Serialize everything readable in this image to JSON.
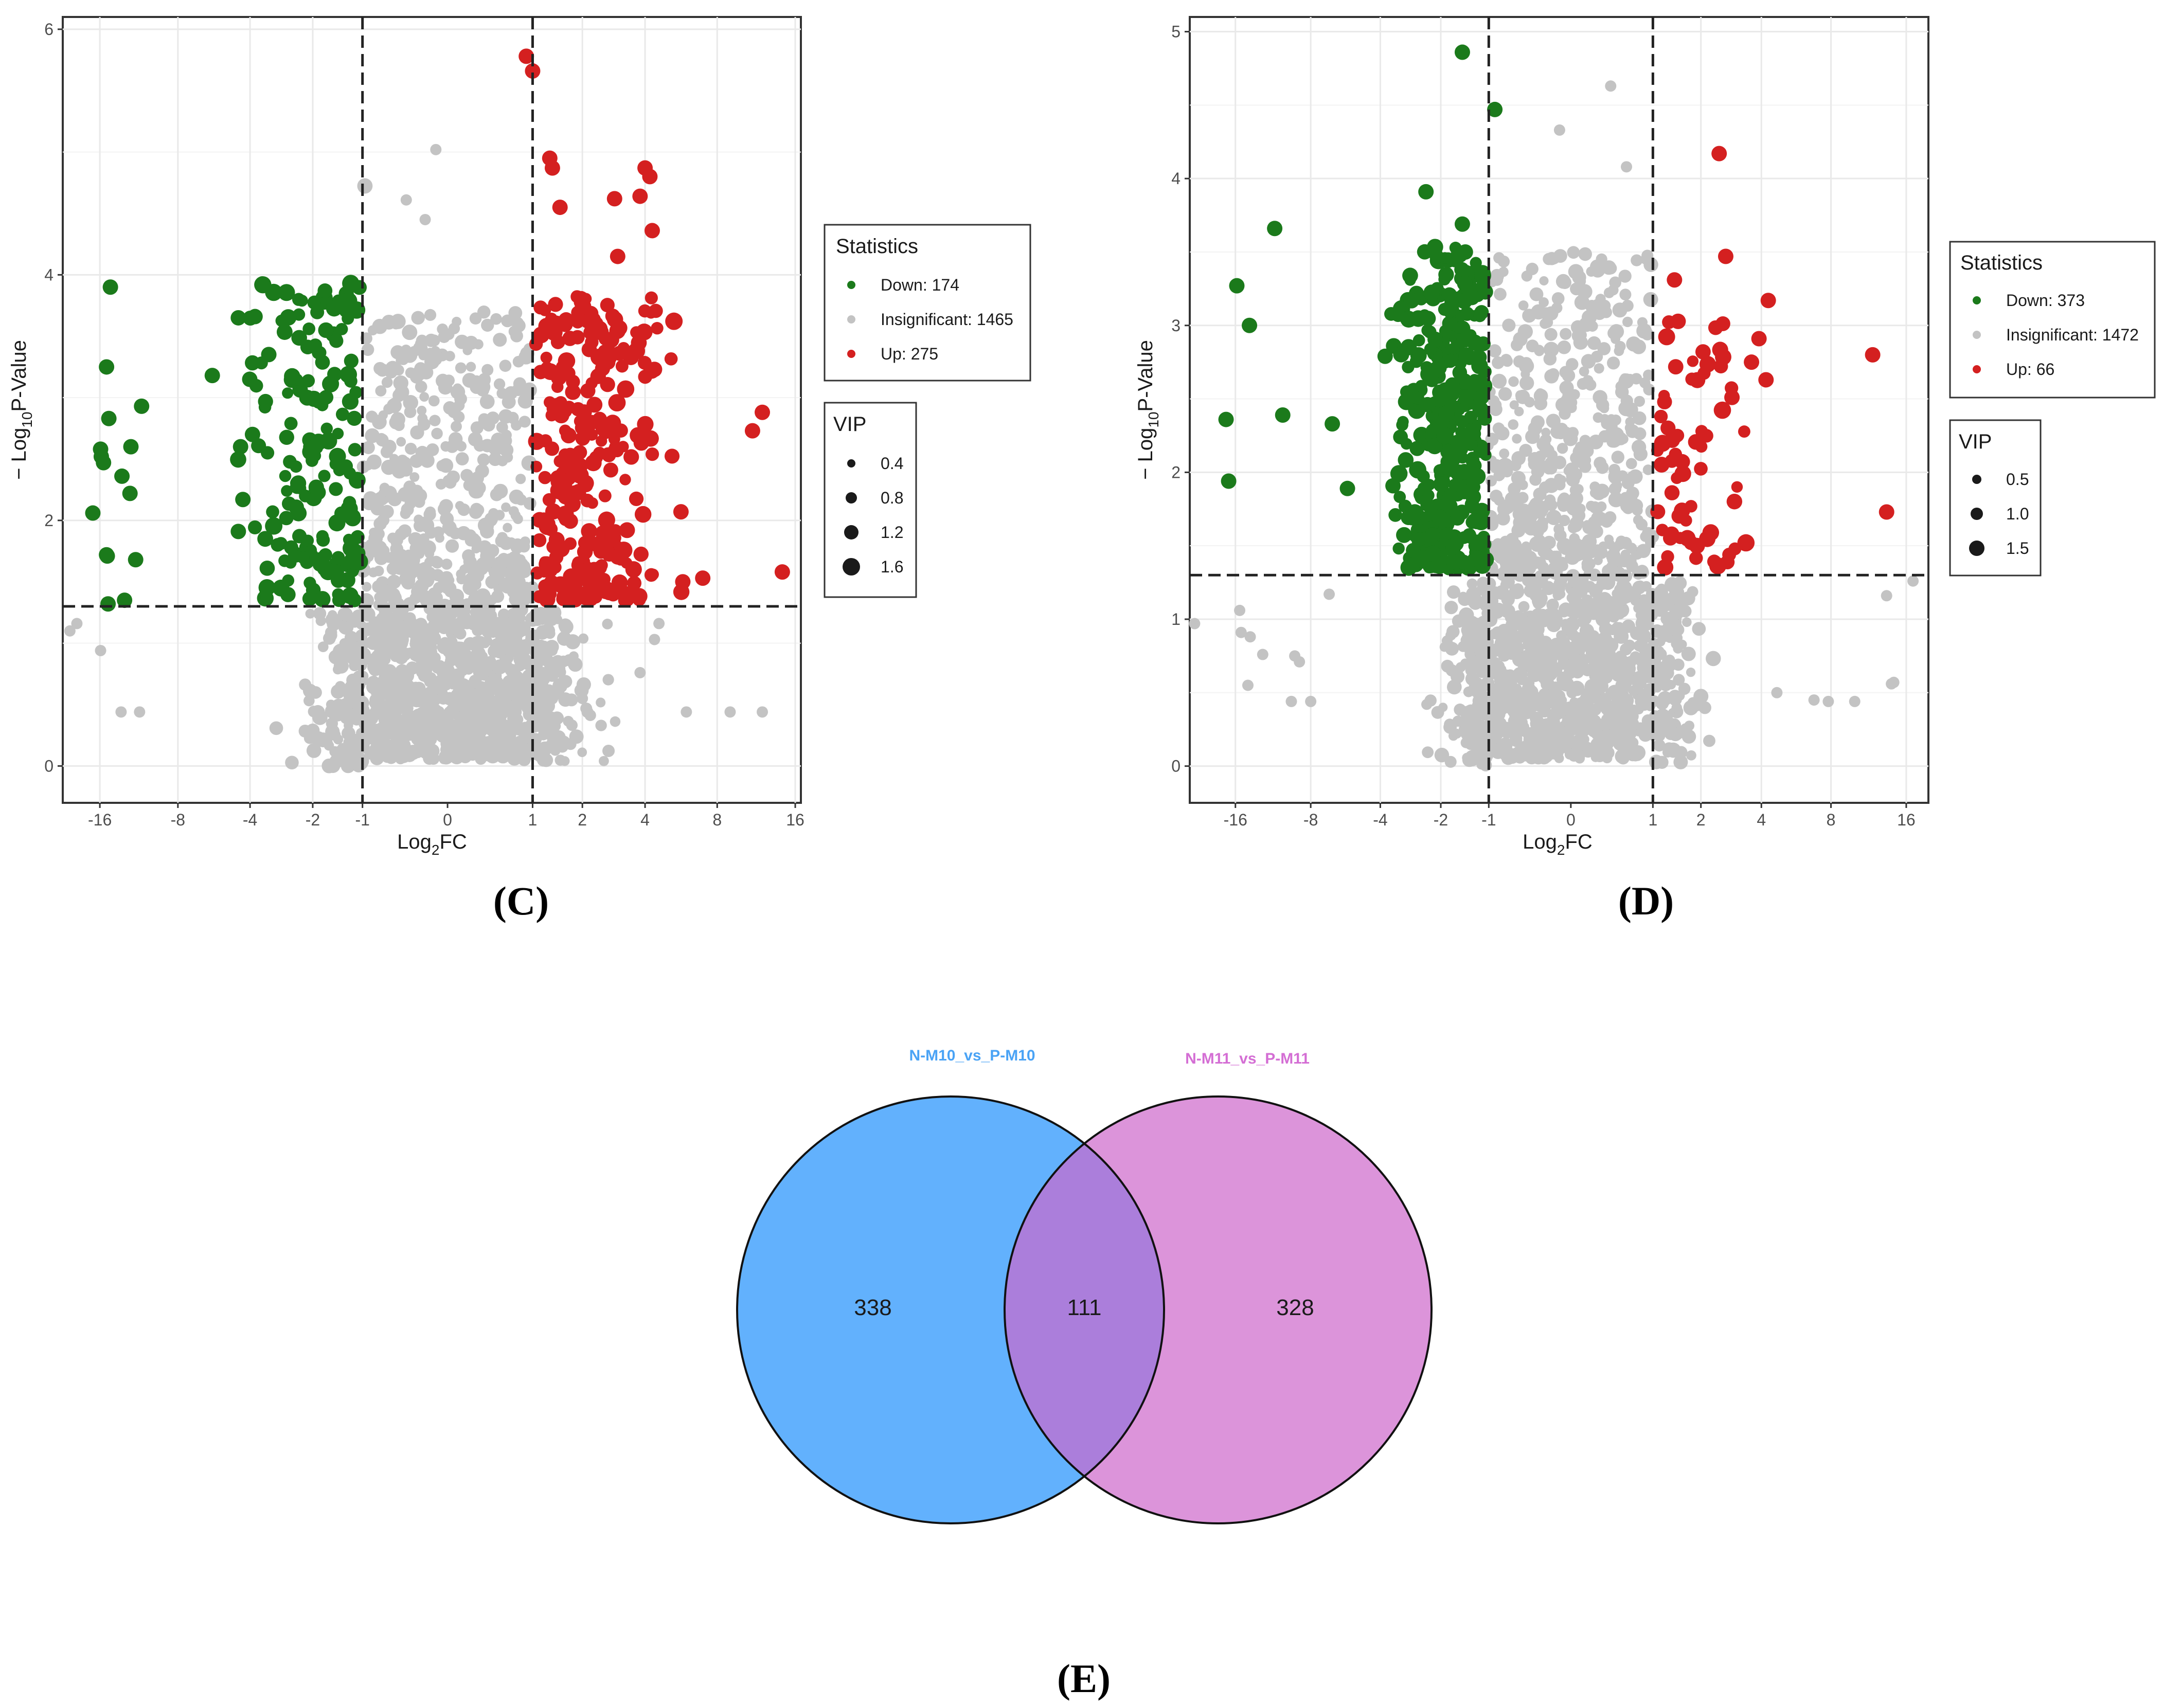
{
  "chart_data": [
    {
      "type": "scatter",
      "subtype": "volcano",
      "panel_label": "(C)",
      "xlabel": "Log2FC",
      "xlabel_main": "Log",
      "xlabel_sub": "2",
      "xlabel_tail": "FC",
      "ylabel_pre": "− Log",
      "ylabel_sub": "10",
      "ylabel_tail": "P-Value",
      "xlim": [
        -22,
        16.8
      ],
      "ylim": [
        -0.3,
        6.1
      ],
      "x_ticks": [
        -16,
        -8,
        -4,
        -2,
        -1,
        0,
        1,
        2,
        4,
        8,
        16
      ],
      "x_tick_labels": [
        "-16",
        "-8",
        "-4",
        "-2",
        "-1",
        "0",
        "1",
        "2",
        "4",
        "8",
        "16"
      ],
      "y_ticks": [
        0,
        2,
        4,
        6
      ],
      "y_tick_labels": [
        "0",
        "2",
        "4",
        "6"
      ],
      "x_scale": "symmetric-log2",
      "vlines": [
        -1,
        1
      ],
      "hline": 1.3,
      "legend": {
        "statistics_title": "Statistics",
        "items": [
          {
            "label": "Down: 174",
            "color": "#1b7a1b"
          },
          {
            "label": "Insignificant: 1465",
            "color": "#c3c3c3"
          },
          {
            "label": "Up: 275",
            "color": "#d42020"
          }
        ],
        "vip_title": "VIP",
        "vip_items": [
          "0.4",
          "0.8",
          "1.2",
          "1.6"
        ]
      },
      "counts": {
        "down": 174,
        "insignificant": 1465,
        "up": 275
      },
      "highlight_points": [
        {
          "x": -14.6,
          "y": 3.9,
          "g": "down"
        },
        {
          "x": -15.1,
          "y": 3.25,
          "g": "down"
        },
        {
          "x": -14.8,
          "y": 2.83,
          "g": "down"
        },
        {
          "x": -15.9,
          "y": 2.58,
          "g": "down"
        },
        {
          "x": -15.8,
          "y": 2.52,
          "g": "down"
        },
        {
          "x": -15.5,
          "y": 2.47,
          "g": "down"
        },
        {
          "x": -13.2,
          "y": 2.36,
          "g": "down"
        },
        {
          "x": -12.3,
          "y": 2.22,
          "g": "down"
        },
        {
          "x": -12.2,
          "y": 2.6,
          "g": "down"
        },
        {
          "x": -11.1,
          "y": 2.93,
          "g": "down"
        },
        {
          "x": -17.0,
          "y": 2.06,
          "g": "down"
        },
        {
          "x": -15.1,
          "y": 1.72,
          "g": "down"
        },
        {
          "x": -15.0,
          "y": 1.71,
          "g": "down"
        },
        {
          "x": -11.7,
          "y": 1.68,
          "g": "down"
        },
        {
          "x": -12.9,
          "y": 1.35,
          "g": "down"
        },
        {
          "x": -14.9,
          "y": 1.32,
          "g": "down"
        },
        {
          "x": -5.8,
          "y": 3.18,
          "g": "down"
        },
        {
          "x": -4.5,
          "y": 3.65,
          "g": "down"
        },
        {
          "x": -3.8,
          "y": 3.66,
          "g": "down"
        },
        {
          "x": -4.3,
          "y": 2.17,
          "g": "down"
        },
        {
          "x": -4.5,
          "y": 1.91,
          "g": "down"
        },
        {
          "x": -4.4,
          "y": 2.6,
          "g": "down"
        },
        {
          "x": -3.9,
          "y": 2.7,
          "g": "down"
        },
        {
          "x": 0.9,
          "y": 5.78,
          "g": "up"
        },
        {
          "x": 1.0,
          "y": 5.66,
          "g": "up"
        },
        {
          "x": 1.3,
          "y": 4.95,
          "g": "up"
        },
        {
          "x": 1.35,
          "y": 4.87,
          "g": "up"
        },
        {
          "x": 4.0,
          "y": 4.87,
          "g": "up"
        },
        {
          "x": 4.2,
          "y": 4.8,
          "g": "up"
        },
        {
          "x": 3.8,
          "y": 4.64,
          "g": "up"
        },
        {
          "x": 2.9,
          "y": 4.62,
          "g": "up"
        },
        {
          "x": 1.5,
          "y": 4.55,
          "g": "up"
        },
        {
          "x": 4.3,
          "y": 4.36,
          "g": "up"
        },
        {
          "x": 12.0,
          "y": 2.88,
          "g": "up"
        },
        {
          "x": 11.0,
          "y": 2.73,
          "g": "up"
        },
        {
          "x": 14.3,
          "y": 1.58,
          "g": "up"
        },
        {
          "x": 7.0,
          "y": 1.53,
          "g": "up"
        },
        {
          "x": 5.8,
          "y": 1.5,
          "g": "up"
        },
        {
          "x": 5.7,
          "y": 2.07,
          "g": "up"
        },
        {
          "x": 4.4,
          "y": 3.23,
          "g": "up"
        },
        {
          "x": 3.0,
          "y": 4.15,
          "g": "up"
        },
        {
          "x": -20.7,
          "y": 1.1,
          "g": "ns"
        },
        {
          "x": -19.5,
          "y": 1.16,
          "g": "ns"
        },
        {
          "x": -15.9,
          "y": 0.94,
          "g": "ns"
        },
        {
          "x": -13.3,
          "y": 0.44,
          "g": "ns"
        },
        {
          "x": -11.3,
          "y": 0.44,
          "g": "ns"
        },
        {
          "x": 6.0,
          "y": 0.44,
          "g": "ns"
        },
        {
          "x": 9.0,
          "y": 0.44,
          "g": "ns"
        },
        {
          "x": 12.0,
          "y": 0.44,
          "g": "ns"
        },
        {
          "x": 4.6,
          "y": 1.16,
          "g": "ns"
        },
        {
          "x": 4.4,
          "y": 1.03,
          "g": "ns"
        },
        {
          "x": 3.8,
          "y": 0.76,
          "g": "ns"
        },
        {
          "x": 2.0,
          "y": 0.55,
          "g": "ns"
        },
        {
          "x": -0.1,
          "y": 5.02,
          "g": "ns"
        },
        {
          "x": -0.4,
          "y": 4.61,
          "g": "ns"
        },
        {
          "x": -0.2,
          "y": 4.45,
          "g": "ns"
        }
      ]
    },
    {
      "type": "scatter",
      "subtype": "volcano",
      "panel_label": "(D)",
      "xlabel": "Log2FC",
      "xlabel_main": "Log",
      "xlabel_sub": "2",
      "xlabel_tail": "FC",
      "ylabel_pre": "− Log",
      "ylabel_sub": "10",
      "ylabel_tail": "P-Value",
      "xlim": [
        -24,
        19.5
      ],
      "ylim": [
        -0.25,
        5.1
      ],
      "x_ticks": [
        -16,
        -8,
        -4,
        -2,
        -1,
        0,
        1,
        2,
        4,
        8,
        16
      ],
      "x_tick_labels": [
        "-16",
        "-8",
        "-4",
        "-2",
        "-1",
        "0",
        "1",
        "2",
        "4",
        "8",
        "16"
      ],
      "y_ticks": [
        0,
        1,
        2,
        3,
        4,
        5
      ],
      "y_tick_labels": [
        "0",
        "1",
        "2",
        "3",
        "4",
        "5"
      ],
      "x_scale": "symmetric-log2",
      "vlines": [
        -1,
        1
      ],
      "hline": 1.3,
      "legend": {
        "statistics_title": "Statistics",
        "items": [
          {
            "label": "Down: 373",
            "color": "#1b7a1b"
          },
          {
            "label": "Insignificant: 1472",
            "color": "#c3c3c3"
          },
          {
            "label": "Up: 66",
            "color": "#d42020"
          }
        ],
        "vip_title": "VIP",
        "vip_items": [
          "0.5",
          "1.0",
          "1.5"
        ]
      },
      "counts": {
        "down": 373,
        "insignificant": 1472,
        "up": 66
      },
      "highlight_points": [
        {
          "x": -1.5,
          "y": 4.86,
          "g": "down"
        },
        {
          "x": -0.9,
          "y": 4.47,
          "g": "down"
        },
        {
          "x": -11.2,
          "y": 3.66,
          "g": "down"
        },
        {
          "x": -15.8,
          "y": 3.27,
          "g": "down"
        },
        {
          "x": -14.1,
          "y": 3.0,
          "g": "down"
        },
        {
          "x": -17.4,
          "y": 2.36,
          "g": "down"
        },
        {
          "x": -17.0,
          "y": 1.94,
          "g": "down"
        },
        {
          "x": -10.4,
          "y": 2.39,
          "g": "down"
        },
        {
          "x": -6.5,
          "y": 2.33,
          "g": "down"
        },
        {
          "x": -5.6,
          "y": 1.89,
          "g": "down"
        },
        {
          "x": -3.8,
          "y": 2.79,
          "g": "down"
        },
        {
          "x": -2.4,
          "y": 3.91,
          "g": "down"
        },
        {
          "x": -1.5,
          "y": 3.69,
          "g": "down"
        },
        {
          "x": 2.5,
          "y": 4.17,
          "g": "up"
        },
        {
          "x": 2.7,
          "y": 3.47,
          "g": "up"
        },
        {
          "x": 4.3,
          "y": 3.17,
          "g": "up"
        },
        {
          "x": 3.9,
          "y": 2.91,
          "g": "up"
        },
        {
          "x": 11.8,
          "y": 2.8,
          "g": "up"
        },
        {
          "x": 13.4,
          "y": 1.73,
          "g": "up"
        },
        {
          "x": 3.6,
          "y": 2.75,
          "g": "up"
        },
        {
          "x": 4.2,
          "y": 2.63,
          "g": "up"
        },
        {
          "x": 2.9,
          "y": 2.51,
          "g": "up"
        },
        {
          "x": 1.4,
          "y": 3.31,
          "g": "up"
        },
        {
          "x": 0.4,
          "y": 4.63,
          "g": "ns"
        },
        {
          "x": -0.1,
          "y": 4.33,
          "g": "ns"
        },
        {
          "x": 0.6,
          "y": 4.08,
          "g": "ns"
        },
        {
          "x": -23.0,
          "y": 0.97,
          "g": "ns"
        },
        {
          "x": -15.4,
          "y": 1.06,
          "g": "ns"
        },
        {
          "x": -15.2,
          "y": 0.91,
          "g": "ns"
        },
        {
          "x": -14.0,
          "y": 0.88,
          "g": "ns"
        },
        {
          "x": -14.3,
          "y": 0.55,
          "g": "ns"
        },
        {
          "x": -12.5,
          "y": 0.76,
          "g": "ns"
        },
        {
          "x": -9.3,
          "y": 0.75,
          "g": "ns"
        },
        {
          "x": -8.9,
          "y": 0.71,
          "g": "ns"
        },
        {
          "x": -6.7,
          "y": 1.17,
          "g": "ns"
        },
        {
          "x": -8.0,
          "y": 0.44,
          "g": "ns"
        },
        {
          "x": -9.6,
          "y": 0.44,
          "g": "ns"
        },
        {
          "x": 4.7,
          "y": 0.5,
          "g": "ns"
        },
        {
          "x": 6.8,
          "y": 0.45,
          "g": "ns"
        },
        {
          "x": 7.8,
          "y": 0.44,
          "g": "ns"
        },
        {
          "x": 10.0,
          "y": 0.44,
          "g": "ns"
        },
        {
          "x": 13.4,
          "y": 1.16,
          "g": "ns"
        },
        {
          "x": 14.0,
          "y": 0.56,
          "g": "ns"
        },
        {
          "x": 17.0,
          "y": 1.26,
          "g": "ns"
        },
        {
          "x": 14.3,
          "y": 0.57,
          "g": "ns"
        }
      ]
    },
    {
      "type": "venn",
      "panel_label": "(E)",
      "sets": [
        {
          "name": "N-M10_vs_P-M10",
          "only": 338,
          "color": "#62b1fd"
        },
        {
          "name": "N-M11_vs_P-M11",
          "only": 328,
          "color": "#dc94da"
        }
      ],
      "intersection": 111,
      "overlap_color": "#ab7edb"
    }
  ]
}
